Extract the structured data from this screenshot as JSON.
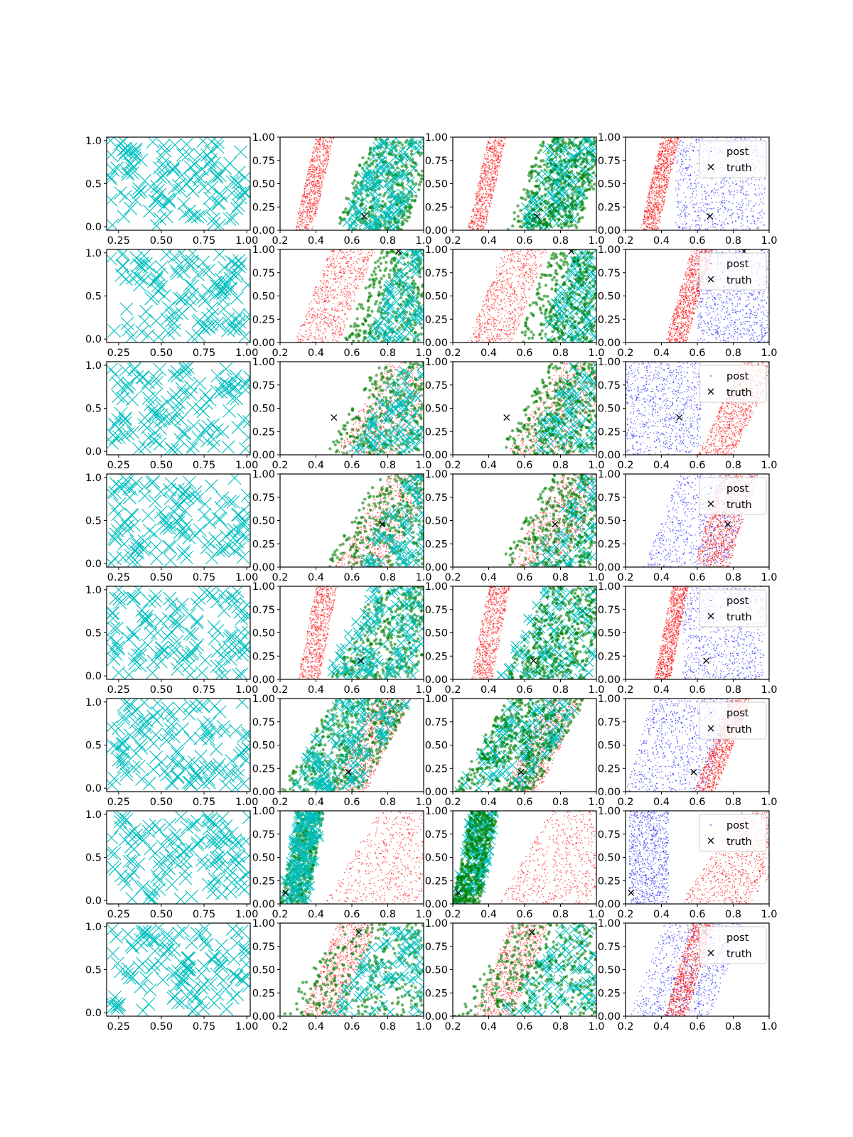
{
  "chart_data": {
    "type": "scatter",
    "layout": {
      "rows": 8,
      "cols": 4
    },
    "colors": {
      "prior": "#00bfbf",
      "green": "#008000",
      "red": "#ff0000",
      "blue": "#0000ff",
      "truth": "#000000",
      "axes": "#000000"
    },
    "col0_axes": {
      "xticks": [
        0.25,
        0.5,
        0.75,
        1.0
      ],
      "xtick_labels": [
        "0.25",
        "0.50",
        "0.75",
        "1.00"
      ],
      "yticks": [
        0.0,
        0.5,
        1.0
      ],
      "ytick_labels": [
        "0.0",
        "0.5",
        "1.0"
      ],
      "xlim": [
        0.18,
        1.02
      ],
      "ylim": [
        -0.04,
        1.04
      ]
    },
    "posterior_axes": {
      "xticks": [
        0.2,
        0.4,
        0.6,
        0.8,
        1.0
      ],
      "xtick_labels": [
        "0.2",
        "0.4",
        "0.6",
        "0.8",
        "1.0"
      ],
      "yticks": [
        0.0,
        0.25,
        0.5,
        0.75,
        1.0
      ],
      "ytick_labels": [
        "0.00",
        "0.25",
        "0.50",
        "0.75",
        "1.00"
      ],
      "xlim": [
        0.2,
        1.0
      ],
      "ylim": [
        0.0,
        1.0
      ]
    },
    "legend": {
      "entries": [
        "post",
        "truth"
      ],
      "placement": "upper-right",
      "panel_column": 4
    },
    "rows": [
      {
        "truth": [
          0.67,
          0.15
        ],
        "red": {
          "x0": 0.28,
          "slope": 0.12,
          "width": 0.1
        },
        "green": {
          "x0": 0.5,
          "slope": 0.2,
          "width": 0.4
        },
        "cyan": {
          "x0": 0.55,
          "slope": 0.2,
          "width": 0.3
        },
        "p4blue": {
          "x0": 0.48,
          "slope": 0.0,
          "width": 0.5
        },
        "p4red": {
          "x0": 0.28,
          "slope": 0.12,
          "width": 0.1
        }
      },
      {
        "truth": [
          0.86,
          0.98
        ],
        "red": {
          "x0": 0.28,
          "slope": 0.2,
          "width": 0.25
        },
        "green": {
          "x0": 0.55,
          "slope": 0.2,
          "width": 0.45
        },
        "cyan": {
          "x0": 0.68,
          "slope": 0.2,
          "width": 0.35
        },
        "p4blue": {
          "x0": 0.6,
          "slope": 0.0,
          "width": 0.4
        },
        "p4red": {
          "x0": 0.42,
          "slope": 0.15,
          "width": 0.12
        }
      },
      {
        "truth": [
          0.5,
          0.4
        ],
        "red": {
          "x0": 0.5,
          "slope": 0.3,
          "width": 0.35
        },
        "green": {
          "x0": 0.45,
          "slope": 0.3,
          "width": 0.55
        },
        "cyan": {
          "x0": 0.58,
          "slope": 0.3,
          "width": 0.45
        },
        "p4blue": {
          "x0": 0.2,
          "slope": 0.0,
          "width": 0.42
        },
        "p4red": {
          "x0": 0.6,
          "slope": 0.25,
          "width": 0.2
        }
      },
      {
        "truth": [
          0.77,
          0.46
        ],
        "red": {
          "x0": 0.5,
          "slope": 0.3,
          "width": 0.3
        },
        "green": {
          "x0": 0.45,
          "slope": 0.3,
          "width": 0.55
        },
        "cyan": {
          "x0": 0.62,
          "slope": 0.3,
          "width": 0.45
        },
        "p4blue": {
          "x0": 0.3,
          "slope": 0.2,
          "width": 0.45
        },
        "p4red": {
          "x0": 0.58,
          "slope": 0.15,
          "width": 0.2
        }
      },
      {
        "truth": [
          0.65,
          0.2
        ],
        "red": {
          "x0": 0.3,
          "slope": 0.1,
          "width": 0.12
        },
        "green": {
          "x0": 0.48,
          "slope": 0.25,
          "width": 0.45
        },
        "cyan": {
          "x0": 0.45,
          "slope": 0.25,
          "width": 0.5
        },
        "p4blue": {
          "x0": 0.52,
          "slope": 0.0,
          "width": 0.45
        },
        "p4red": {
          "x0": 0.36,
          "slope": 0.1,
          "width": 0.09
        }
      },
      {
        "truth": [
          0.58,
          0.21
        ],
        "red": {
          "x0": 0.48,
          "slope": 0.25,
          "width": 0.2
        },
        "green": {
          "x0": 0.2,
          "slope": 0.3,
          "width": 0.45
        },
        "cyan": {
          "x0": 0.22,
          "slope": 0.3,
          "width": 0.4
        },
        "p4blue": {
          "x0": 0.2,
          "slope": 0.15,
          "width": 0.45
        },
        "p4red": {
          "x0": 0.58,
          "slope": 0.2,
          "width": 0.12
        }
      },
      {
        "truth": [
          0.23,
          0.12
        ],
        "red": {
          "x0": 0.45,
          "slope": 0.3,
          "width": 0.5
        },
        "green": {
          "x0": 0.2,
          "slope": 0.1,
          "width": 0.15
        },
        "cyan": {
          "x0": 0.2,
          "slope": 0.1,
          "width": 0.15
        },
        "p4blue": {
          "x0": 0.22,
          "slope": 0.0,
          "width": 0.22
        },
        "p4red": {
          "x0": 0.5,
          "slope": 0.35,
          "width": 0.4
        }
      },
      {
        "truth": [
          0.64,
          0.9
        ],
        "red": {
          "x0": 0.32,
          "slope": 0.2,
          "width": 0.22
        },
        "green": {
          "x0": 0.2,
          "slope": 0.35,
          "width": 0.8
        },
        "cyan": {
          "x0": 0.45,
          "slope": 0.35,
          "width": 0.55
        },
        "p4blue": {
          "x0": 0.22,
          "slope": 0.2,
          "width": 0.45
        },
        "p4red": {
          "x0": 0.42,
          "slope": 0.15,
          "width": 0.12
        }
      }
    ]
  }
}
